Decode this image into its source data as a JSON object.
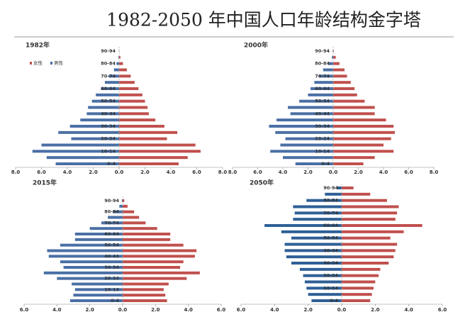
{
  "title": "1982-2050 年中国人口年龄结构金字塔",
  "chart_data": [
    {
      "type": "pyramid",
      "title": "1982年",
      "legend": "upper left",
      "categories": [
        "0-4",
        null,
        "10-14",
        null,
        "20-24",
        null,
        "30-34",
        null,
        "40-44",
        null,
        "50-54",
        null,
        "60-64",
        null,
        "70-74",
        null,
        "80-84",
        null,
        "90-94"
      ],
      "xlim": [
        -8,
        8
      ],
      "xticks": [
        {
          "value": -8,
          "label": "8.0"
        },
        {
          "value": -6,
          "label": "6.0"
        },
        {
          "value": -4,
          "label": "4.0"
        },
        {
          "value": -2,
          "label": "2.0"
        },
        {
          "value": 0,
          "label": "0.0"
        },
        {
          "value": 2,
          "label": "2.0"
        },
        {
          "value": 4,
          "label": "4.0"
        },
        {
          "value": 6,
          "label": "6.0"
        },
        {
          "value": 8,
          "label": "8.0"
        }
      ],
      "series": [
        {
          "name": "女性",
          "color": "#c0504d",
          "values": [
            4.6,
            5.3,
            6.3,
            5.9,
            3.7,
            4.5,
            3.5,
            2.8,
            2.3,
            2.2,
            2.0,
            1.8,
            1.5,
            1.2,
            0.9,
            0.6,
            0.3,
            0.1,
            0.02
          ]
        },
        {
          "name": "男性",
          "color": "#4a6fa5",
          "values": [
            -4.9,
            -5.6,
            -6.7,
            -6.0,
            -3.7,
            -4.7,
            -3.8,
            -3.0,
            -2.5,
            -2.4,
            -2.1,
            -1.8,
            -1.4,
            -1.1,
            -0.8,
            -0.4,
            -0.2,
            -0.05,
            -0.01
          ]
        }
      ]
    },
    {
      "type": "pyramid",
      "title": "2000年",
      "categories": [
        "0-4",
        null,
        "10-14",
        null,
        "20-24",
        null,
        "30-34",
        null,
        "40-44",
        null,
        "50-54",
        null,
        "60-64",
        null,
        "70-74",
        null,
        "80-84",
        null,
        "90-94"
      ],
      "xlim": [
        -8,
        8
      ],
      "xticks": [
        {
          "value": -8,
          "label": "8.0"
        },
        {
          "value": -6,
          "label": "6.0"
        },
        {
          "value": -4,
          "label": "4.0"
        },
        {
          "value": -2,
          "label": "2.0"
        },
        {
          "value": 0,
          "label": "0.0"
        },
        {
          "value": 2,
          "label": "2.0"
        },
        {
          "value": 4,
          "label": "4.0"
        },
        {
          "value": 6,
          "label": "6.0"
        },
        {
          "value": 8,
          "label": "8.0"
        }
      ],
      "series": [
        {
          "color": "#c0504d",
          "values": [
            2.4,
            3.3,
            4.8,
            4.0,
            4.6,
            4.9,
            4.8,
            4.2,
            3.3,
            3.3,
            2.5,
            1.9,
            1.7,
            1.4,
            1.1,
            0.9,
            0.5,
            0.2,
            0.05
          ]
        },
        {
          "color": "#4a6fa5",
          "values": [
            -3.0,
            -4.0,
            -5.0,
            -4.2,
            -3.8,
            -4.6,
            -5.1,
            -4.5,
            -3.4,
            -3.6,
            -2.7,
            -2.0,
            -1.8,
            -1.5,
            -1.1,
            -0.8,
            -0.4,
            -0.1,
            -0.03
          ]
        }
      ]
    },
    {
      "type": "pyramid",
      "title": "2015年",
      "categories": [
        "0-4",
        null,
        "10-14",
        null,
        "20-24",
        null,
        "30-34",
        null,
        "40-44",
        null,
        "50-54",
        null,
        "60-64",
        null,
        "70-74",
        null,
        "80-84",
        null,
        "90-94"
      ],
      "xlim": [
        -6,
        6
      ],
      "xticks": [
        {
          "value": -6,
          "label": "6.0"
        },
        {
          "value": -4,
          "label": "4.0"
        },
        {
          "value": -2,
          "label": "2.0"
        },
        {
          "value": 0,
          "label": "0.0"
        },
        {
          "value": 2,
          "label": "2.0"
        },
        {
          "value": 4,
          "label": "4.0"
        },
        {
          "value": 6,
          "label": "6.0"
        }
      ],
      "series": [
        {
          "color": "#c0504d",
          "values": [
            2.7,
            2.6,
            2.5,
            2.8,
            3.9,
            4.7,
            3.5,
            3.7,
            4.4,
            4.5,
            3.7,
            2.9,
            2.9,
            2.1,
            1.4,
            1.0,
            0.7,
            0.3,
            0.1
          ]
        },
        {
          "color": "#4a6fa5",
          "values": [
            -3.2,
            -3.0,
            -2.9,
            -3.1,
            -4.0,
            -4.8,
            -3.6,
            -3.8,
            -4.5,
            -4.6,
            -3.8,
            -2.9,
            -2.9,
            -2.0,
            -1.3,
            -0.9,
            -0.6,
            -0.2,
            -0.05
          ]
        }
      ]
    },
    {
      "type": "pyramid",
      "title": "2050年",
      "categories": [
        "0-4",
        null,
        "10-14",
        null,
        "20-24",
        null,
        "30-34",
        null,
        "40-44",
        null,
        "50-54",
        null,
        "60-64",
        null,
        "70-74",
        null,
        "80-84",
        null,
        "90-94"
      ],
      "xlim": [
        -6,
        6
      ],
      "xticks": [
        {
          "value": -6,
          "label": "6.0"
        },
        {
          "value": -4,
          "label": "4.0"
        },
        {
          "value": -2,
          "label": "2.0"
        },
        {
          "value": 0,
          "label": "0.0"
        },
        {
          "value": 2,
          "label": "2.0"
        },
        {
          "value": 4,
          "label": "4.0"
        },
        {
          "value": 6,
          "label": "6.0"
        }
      ],
      "series": [
        {
          "color": "#c0504d",
          "values": [
            1.7,
            1.8,
            1.9,
            2.0,
            2.2,
            2.3,
            2.8,
            3.1,
            3.2,
            3.3,
            2.9,
            3.7,
            4.8,
            3.2,
            3.3,
            3.4,
            2.7,
            1.7,
            0.7
          ]
        },
        {
          "color": "#2e5f96",
          "values": [
            -1.8,
            -2.0,
            -2.1,
            -2.2,
            -2.3,
            -2.5,
            -3.0,
            -3.3,
            -3.4,
            -3.4,
            -3.0,
            -3.6,
            -4.6,
            -2.9,
            -2.8,
            -2.9,
            -2.1,
            -1.0,
            -0.3
          ]
        }
      ]
    }
  ]
}
